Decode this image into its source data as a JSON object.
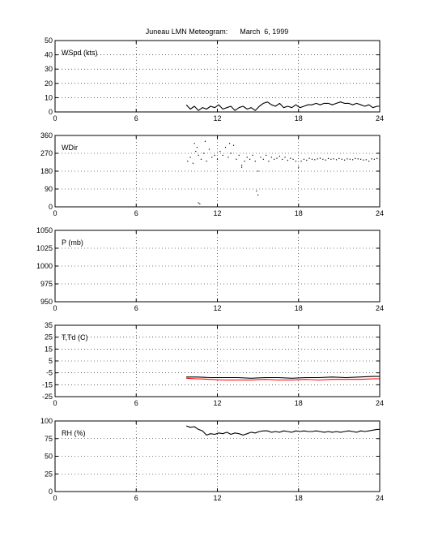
{
  "figure": {
    "title": "Juneau LMN Meteogram:      March  6, 1999"
  },
  "chart_data": [
    {
      "type": "line",
      "label": "WSpd (kts)",
      "xlim": [
        0,
        24
      ],
      "ylim": [
        0,
        50
      ],
      "xticks": [
        0,
        6,
        12,
        18,
        24
      ],
      "yticks": [
        0,
        10,
        20,
        30,
        40,
        50
      ],
      "grid": true,
      "series": [
        {
          "color": "#000000",
          "style": "line",
          "x": [
            9.7,
            10.0,
            10.3,
            10.6,
            10.9,
            11.2,
            11.5,
            11.8,
            12.1,
            12.4,
            12.7,
            13.0,
            13.3,
            13.6,
            13.9,
            14.2,
            14.5,
            14.8,
            15.1,
            15.4,
            15.7,
            16.0,
            16.3,
            16.6,
            16.9,
            17.2,
            17.5,
            17.8,
            18.1,
            18.4,
            18.7,
            19.0,
            19.3,
            19.6,
            19.9,
            20.2,
            20.5,
            20.8,
            21.1,
            21.4,
            21.7,
            22.0,
            22.3,
            22.6,
            22.9,
            23.2,
            23.5,
            23.8,
            24.0
          ],
          "y": [
            5,
            2,
            4,
            1,
            3,
            2,
            4,
            3,
            5,
            2,
            3,
            4,
            1,
            3,
            4,
            2,
            3,
            1,
            4,
            6,
            7,
            5,
            4,
            6,
            3,
            4,
            3,
            5,
            3,
            4,
            5,
            5,
            6,
            5,
            6,
            6,
            5,
            6,
            7,
            6,
            6,
            5,
            6,
            5,
            4,
            5,
            3,
            4,
            4
          ]
        }
      ]
    },
    {
      "type": "scatter",
      "label": "WDir",
      "xlim": [
        0,
        24
      ],
      "ylim": [
        0,
        360
      ],
      "xticks": [
        0,
        6,
        12,
        18,
        24
      ],
      "yticks": [
        0,
        90,
        180,
        270,
        360
      ],
      "grid": true,
      "series": [
        {
          "color": "#000000",
          "style": "dots",
          "x": [
            9.8,
            10.0,
            10.2,
            10.4,
            10.5,
            10.6,
            10.8,
            11.0,
            11.2,
            11.4,
            11.6,
            11.8,
            12.0,
            12.2,
            12.4,
            12.6,
            12.8,
            13.0,
            13.2,
            13.4,
            13.6,
            13.8,
            14.0,
            14.2,
            14.4,
            14.6,
            14.8,
            15.0,
            15.2,
            15.4,
            15.6,
            15.8,
            16.0,
            16.2,
            16.4,
            16.6,
            16.8,
            17.0,
            17.2,
            17.4,
            17.6,
            17.8,
            18.0,
            18.2,
            18.4,
            18.6,
            18.8,
            19.0,
            19.2,
            19.4,
            19.6,
            19.8,
            20.0,
            20.2,
            20.4,
            20.6,
            20.8,
            21.0,
            21.2,
            21.4,
            21.6,
            21.8,
            22.0,
            22.2,
            22.4,
            22.6,
            22.8,
            23.0,
            23.2,
            23.4,
            23.6,
            23.8,
            24.0,
            10.6,
            10.7,
            14.9,
            15.0,
            10.3,
            11.1,
            12.9,
            13.8
          ],
          "y": [
            230,
            250,
            220,
            280,
            300,
            260,
            240,
            270,
            230,
            290,
            250,
            260,
            240,
            280,
            260,
            300,
            250,
            270,
            310,
            240,
            260,
            210,
            230,
            250,
            240,
            260,
            230,
            180,
            250,
            240,
            260,
            230,
            250,
            240,
            245,
            255,
            240,
            250,
            235,
            245,
            240,
            230,
            200,
            230,
            240,
            235,
            245,
            240,
            238,
            242,
            245,
            240,
            236,
            244,
            240,
            242,
            238,
            244,
            240,
            236,
            242,
            240,
            238,
            244,
            242,
            240,
            236,
            238,
            230,
            242,
            240,
            244,
            238,
            20,
            15,
            80,
            60,
            320,
            330,
            320,
            200
          ]
        }
      ]
    },
    {
      "type": "line",
      "label": "P (mb)",
      "xlim": [
        0,
        24
      ],
      "ylim": [
        950,
        1050
      ],
      "xticks": [
        0,
        6,
        12,
        18,
        24
      ],
      "yticks": [
        950,
        975,
        1000,
        1025,
        1050
      ],
      "grid": true,
      "series": []
    },
    {
      "type": "line",
      "label": "T,Td (C)",
      "xlim": [
        0,
        24
      ],
      "ylim": [
        -25,
        35
      ],
      "xticks": [
        0,
        6,
        12,
        18,
        24
      ],
      "yticks": [
        -25,
        -15,
        -5,
        5,
        15,
        25,
        35
      ],
      "grid": true,
      "series": [
        {
          "color": "#000000",
          "style": "line",
          "x": [
            9.7,
            10.5,
            11.5,
            12.5,
            13.5,
            14.5,
            15.5,
            16.5,
            17.5,
            18.5,
            19.5,
            20.5,
            21.5,
            22.5,
            23.5,
            24.0
          ],
          "y": [
            -8.5,
            -8.5,
            -9.0,
            -9.0,
            -9.0,
            -9.5,
            -9.0,
            -9.0,
            -9.5,
            -9.0,
            -9.0,
            -8.5,
            -9.0,
            -8.5,
            -8.0,
            -8.0
          ]
        },
        {
          "color": "#ff0000",
          "style": "line",
          "x": [
            9.7,
            10.5,
            11.5,
            12.5,
            13.5,
            14.5,
            15.5,
            16.5,
            17.5,
            18.5,
            19.5,
            20.5,
            21.5,
            22.5,
            23.5,
            24.0
          ],
          "y": [
            -9.5,
            -10.0,
            -10.5,
            -11.0,
            -11.0,
            -11.0,
            -10.5,
            -11.0,
            -11.0,
            -10.5,
            -11.0,
            -10.5,
            -10.5,
            -10.5,
            -10.0,
            -10.0
          ]
        }
      ]
    },
    {
      "type": "line",
      "label": "RH (%)",
      "xlim": [
        0,
        24
      ],
      "ylim": [
        0,
        100
      ],
      "xticks": [
        0,
        6,
        12,
        18,
        24
      ],
      "yticks": [
        0,
        25,
        50,
        75,
        100
      ],
      "grid": true,
      "series": [
        {
          "color": "#000000",
          "style": "line",
          "x": [
            9.7,
            10.0,
            10.3,
            10.6,
            10.9,
            11.2,
            11.5,
            11.8,
            12.1,
            12.4,
            12.7,
            13.0,
            13.3,
            13.6,
            13.9,
            14.2,
            14.5,
            14.8,
            15.1,
            15.4,
            15.7,
            16.0,
            16.3,
            16.6,
            16.9,
            17.2,
            17.5,
            17.8,
            18.1,
            18.4,
            18.7,
            19.0,
            19.3,
            19.6,
            19.9,
            20.2,
            20.5,
            20.8,
            21.1,
            21.4,
            21.7,
            22.0,
            22.3,
            22.6,
            22.9,
            23.2,
            23.5,
            23.8,
            24.0
          ],
          "y": [
            93,
            91,
            92,
            88,
            86,
            80,
            82,
            81,
            83,
            82,
            84,
            81,
            83,
            82,
            80,
            82,
            84,
            83,
            85,
            86,
            86,
            84,
            85,
            84,
            86,
            85,
            84,
            86,
            85,
            86,
            85,
            85,
            86,
            85,
            84,
            85,
            84,
            85,
            84,
            85,
            86,
            85,
            84,
            86,
            85,
            86,
            87,
            88,
            88
          ]
        }
      ]
    }
  ]
}
